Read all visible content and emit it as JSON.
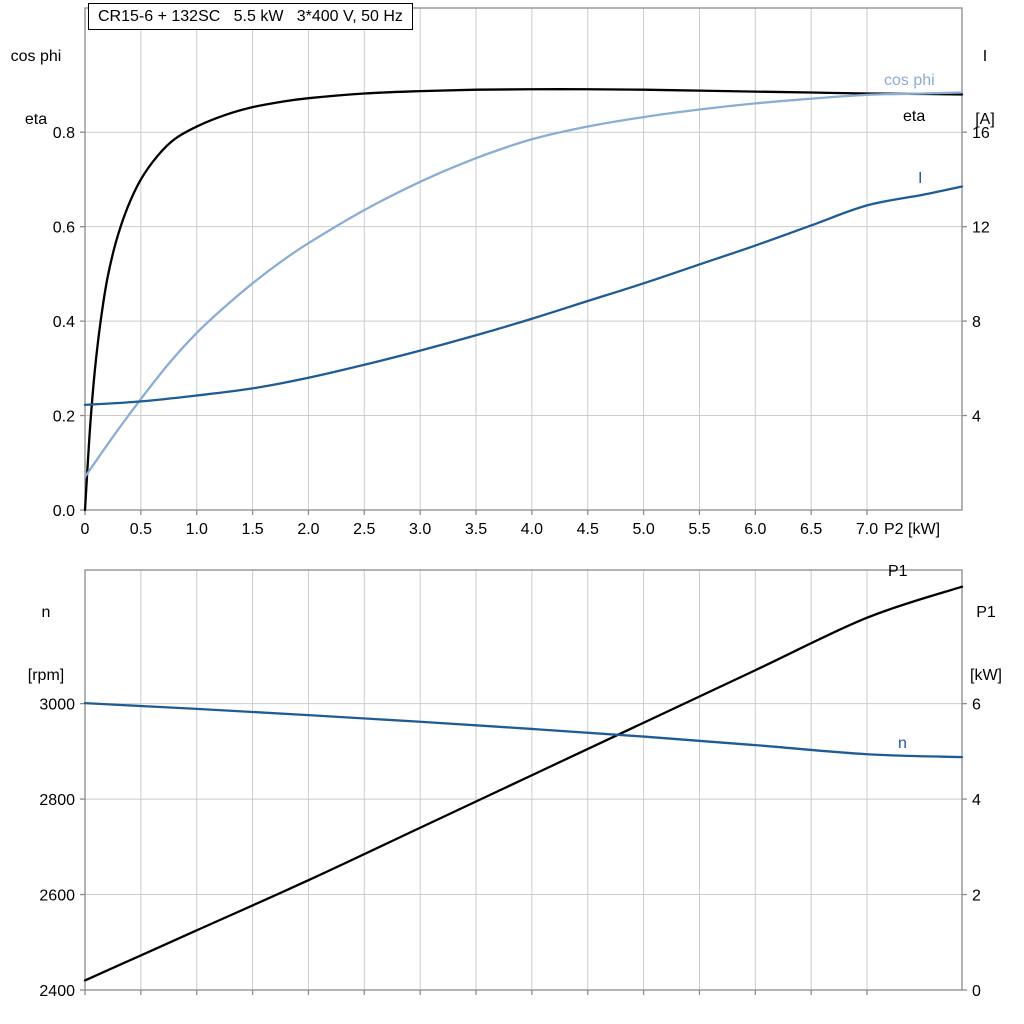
{
  "title": "CR15-6 + 132SC   5.5 kW   3*400 V, 50 Hz",
  "labels": {
    "top_left_line1": "cos phi",
    "top_left_line2": "eta",
    "top_right_line1": "I",
    "top_right_line2": "[A]",
    "x_axis_title": "P2 [kW]",
    "curve_cos_phi": "cos phi",
    "curve_eta": "eta",
    "curve_current": "I",
    "bottom_left_line1": "n",
    "bottom_left_line2": "[rpm]",
    "bottom_right_line1": "P1",
    "bottom_right_line2": "[kW]",
    "curve_p1": "P1",
    "curve_n": "n"
  },
  "colors": {
    "eta": "#000000",
    "cos_phi": "#8badd3",
    "current": "#1f5c94",
    "p1": "#000000",
    "n": "#1f5c94",
    "grid": "#cccccc",
    "frame": "#8c8c8c",
    "text": "#000000"
  },
  "chart_data": [
    {
      "type": "line",
      "title": "CR15-6 + 132SC 5.5 kW 3*400 V, 50 Hz",
      "xlabel": "P2 [kW]",
      "ylabel_left": "cos phi / eta",
      "ylabel_right": "I [A]",
      "xlim": [
        0,
        7.85
      ],
      "ylim_left": [
        0,
        1.063
      ],
      "ylim_right": [
        0,
        21.26
      ],
      "grid": true,
      "legend_position": "right-inline",
      "xticks": [
        0,
        0.5,
        1,
        1.5,
        2,
        2.5,
        3,
        3.5,
        4,
        4.5,
        5,
        5.5,
        6,
        6.5,
        7
      ],
      "xtick_labels": [
        "0",
        "0.5",
        "1.0",
        "1.5",
        "2.0",
        "2.5",
        "3.0",
        "3.5",
        "4.0",
        "4.5",
        "5.0",
        "5.5",
        "6.0",
        "6.5",
        "7.0"
      ],
      "yticks_left": [
        0,
        0.2,
        0.4,
        0.6,
        0.8
      ],
      "ytick_left_labels": [
        "0.0",
        "0.2",
        "0.4",
        "0.6",
        "0.8"
      ],
      "yticks_right": [
        4,
        8,
        12,
        16
      ],
      "ytick_right_labels": [
        "4",
        "8",
        "12",
        "16"
      ],
      "series": [
        {
          "name": "eta",
          "axis": "left",
          "color": "#000000",
          "x": [
            0,
            0.02,
            0.05,
            0.09,
            0.14,
            0.2,
            0.28,
            0.38,
            0.5,
            0.65,
            0.8,
            1,
            1.25,
            1.5,
            1.75,
            2,
            2.5,
            3,
            3.5,
            4,
            4.5,
            5,
            5.5,
            6,
            6.5,
            7,
            7.5,
            7.85
          ],
          "y": [
            0,
            0.08,
            0.19,
            0.3,
            0.4,
            0.49,
            0.57,
            0.64,
            0.7,
            0.75,
            0.785,
            0.812,
            0.836,
            0.853,
            0.864,
            0.872,
            0.882,
            0.887,
            0.89,
            0.891,
            0.891,
            0.89,
            0.888,
            0.886,
            0.884,
            0.882,
            0.881,
            0.88
          ]
        },
        {
          "name": "cos phi",
          "axis": "left",
          "color": "#8badd3",
          "x": [
            0,
            0.25,
            0.5,
            0.75,
            1,
            1.25,
            1.5,
            1.75,
            2,
            2.5,
            3,
            3.5,
            4,
            4.5,
            5,
            5.5,
            6,
            6.5,
            7,
            7.5,
            7.85
          ],
          "y": [
            0.07,
            0.155,
            0.235,
            0.31,
            0.375,
            0.43,
            0.48,
            0.525,
            0.565,
            0.635,
            0.695,
            0.745,
            0.785,
            0.812,
            0.832,
            0.848,
            0.861,
            0.871,
            0.879,
            0.882,
            0.884
          ]
        },
        {
          "name": "I",
          "axis": "right",
          "color": "#1f5c94",
          "x": [
            0,
            0.5,
            1,
            1.5,
            2,
            2.5,
            3,
            3.5,
            4,
            4.5,
            5,
            5.5,
            6,
            6.5,
            7,
            7.5,
            7.85
          ],
          "y": [
            4.45,
            4.6,
            4.85,
            5.15,
            5.6,
            6.15,
            6.75,
            7.4,
            8.1,
            8.85,
            9.6,
            10.4,
            11.2,
            12.05,
            12.9,
            13.35,
            13.7
          ]
        }
      ]
    },
    {
      "type": "line",
      "title": "",
      "xlabel": "",
      "ylabel_left": "n [rpm]",
      "ylabel_right": "P1 [kW]",
      "xlim": [
        0,
        7.85
      ],
      "ylim_left": [
        2400,
        3280
      ],
      "ylim_right": [
        0,
        8.8
      ],
      "grid": true,
      "xticks": [
        0,
        0.5,
        1,
        1.5,
        2,
        2.5,
        3,
        3.5,
        4,
        4.5,
        5,
        5.5,
        6,
        6.5,
        7
      ],
      "xtick_labels": [],
      "yticks_left": [
        2400,
        2600,
        2800,
        3000
      ],
      "ytick_left_labels": [
        "2400",
        "2600",
        "2800",
        "3000"
      ],
      "yticks_right": [
        0,
        2,
        4,
        6
      ],
      "ytick_right_labels": [
        "0",
        "2",
        "4",
        "6"
      ],
      "series": [
        {
          "name": "P1",
          "axis": "right",
          "color": "#000000",
          "x": [
            0,
            1,
            2,
            3,
            4,
            5,
            6,
            7,
            7.85
          ],
          "y": [
            0.2,
            1.25,
            2.3,
            3.4,
            4.5,
            5.6,
            6.7,
            7.8,
            8.45
          ]
        },
        {
          "name": "n",
          "axis": "left",
          "color": "#1f5c94",
          "x": [
            0,
            1,
            2,
            3,
            4,
            5,
            6,
            7,
            7.85
          ],
          "y": [
            3001,
            2989,
            2976,
            2962,
            2947,
            2931,
            2913,
            2894,
            2888
          ]
        }
      ]
    }
  ]
}
